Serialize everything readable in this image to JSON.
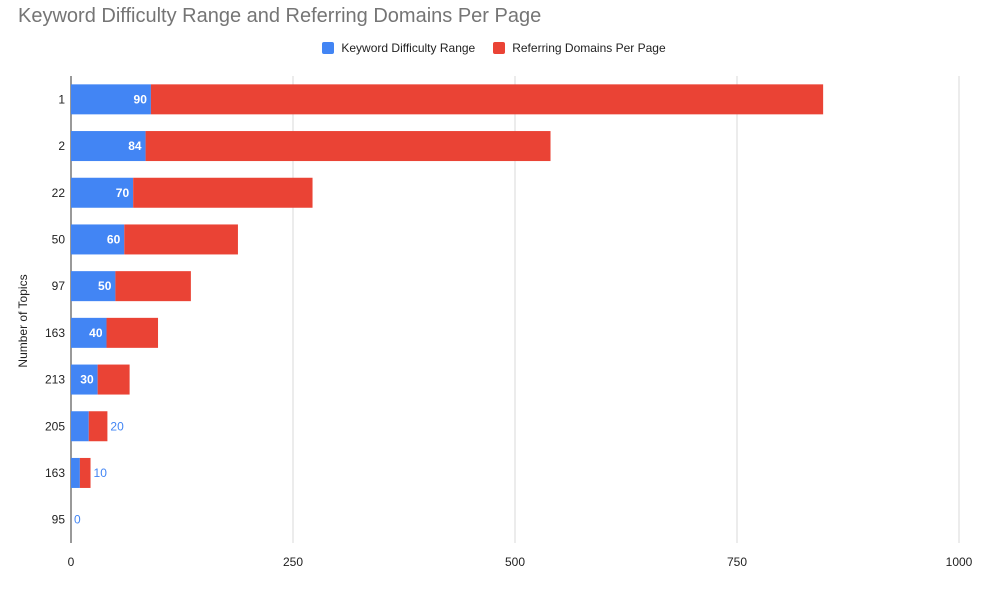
{
  "chart_data": {
    "type": "bar",
    "orientation": "horizontal",
    "stacked": true,
    "title": "Keyword Difficulty Range and Referring Domains Per Page",
    "ylabel": "Number of Topics",
    "xlabel": "",
    "categories": [
      "1",
      "2",
      "22",
      "50",
      "97",
      "163",
      "213",
      "205",
      "163",
      "95"
    ],
    "series": [
      {
        "name": "Keyword Difficulty Range",
        "color": "#4285f4",
        "values": [
          90,
          84,
          70,
          60,
          50,
          40,
          30,
          20,
          10,
          0
        ],
        "data_labels": [
          "90",
          "84",
          "70",
          "60",
          "50",
          "40",
          "30",
          "20",
          "10",
          "0"
        ]
      },
      {
        "name": "Referring Domains Per Page",
        "color": "#ea4335",
        "values": [
          757,
          456,
          202,
          128,
          85,
          58,
          36,
          21,
          12,
          0
        ]
      }
    ],
    "xlim": [
      0,
      1000
    ],
    "x_ticks": [
      "0",
      "250",
      "500",
      "750",
      "1000"
    ],
    "grid": "vertical",
    "legend_position": "top"
  }
}
